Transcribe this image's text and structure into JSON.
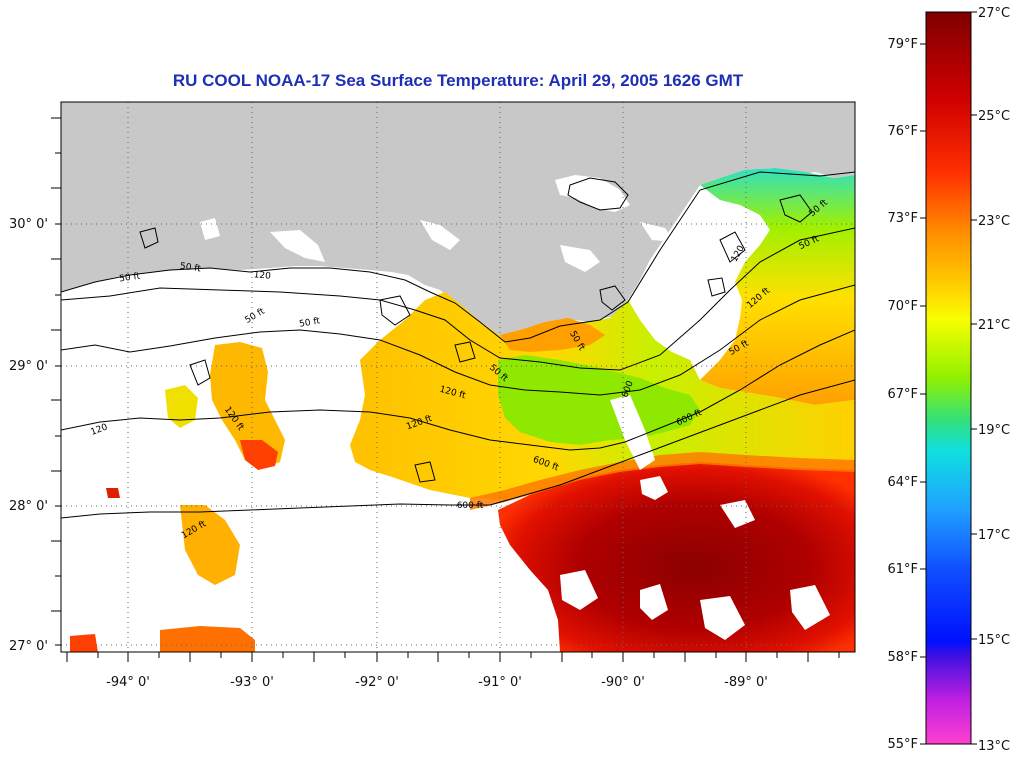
{
  "title": "RU COOL  NOAA-17  Sea Surface Temperature:  April 29, 2005 1626 GMT",
  "lat_labels": [
    "30° 0'",
    "29° 0'",
    "28° 0'",
    "27° 0'"
  ],
  "lon_labels": [
    "-94° 0'",
    "-93° 0'",
    "-92° 0'",
    "-91° 0'",
    "-90° 0'",
    "-89° 0'"
  ],
  "colorbar": {
    "fahrenheit": [
      "79°F",
      "76°F",
      "73°F",
      "70°F",
      "67°F",
      "64°F",
      "61°F",
      "58°F",
      "55°F"
    ],
    "celsius": [
      "27°C",
      "25°C",
      "23°C",
      "21°C",
      "19°C",
      "17°C",
      "15°C",
      "13°C"
    ]
  },
  "contour_labels": [
    "50 ft",
    "120",
    "50 ft",
    "50 ft",
    "120 ft",
    "50 ft",
    "120",
    "50 ft",
    "50 ft",
    "120 ft",
    "600",
    "600 ft",
    "120 ft",
    "600 ft",
    "600 ft",
    "50 ft",
    "120",
    "50 ft",
    "120 ft",
    "50 ft",
    "120 ft"
  ],
  "colors": {
    "land": "#c8c8c8",
    "cloud": "#ffffff",
    "title": "#1f2fb5",
    "sst_warm": "#8b0000",
    "sst_red": "#ff2000",
    "sst_orange": "#ff8c00",
    "sst_yellow": "#f4ff00",
    "sst_green": "#7ee000",
    "sst_cyan": "#20e0d0"
  }
}
